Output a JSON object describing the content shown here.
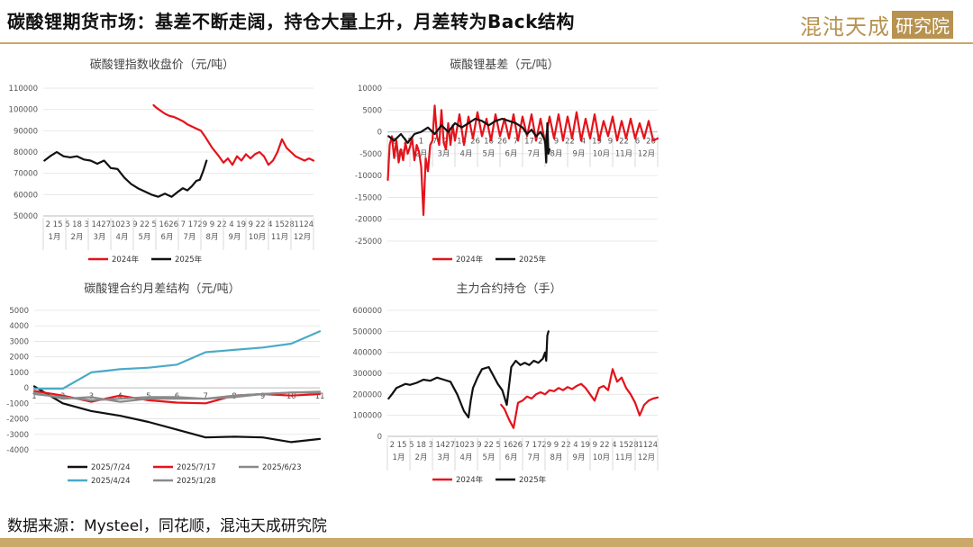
{
  "header": {
    "title": "碳酸锂期货市场：基差不断走阔，持仓大量上升，月差转为Back结构",
    "logo_text": "混沌天成",
    "logo_box": "研究院"
  },
  "footer": {
    "source": "数据来源：Mysteel，同花顺，混沌天成研究院"
  },
  "colors": {
    "red": "#e4131b",
    "black": "#111111",
    "gray": "#8a8a8a",
    "teal": "#4aaac8",
    "gold": "#c9a86a"
  },
  "chart_data": [
    {
      "id": "price",
      "type": "line",
      "title": "碳酸锂指数收盘价（元/吨）",
      "ylim": [
        50000,
        110000
      ],
      "yticks": [
        50000,
        60000,
        70000,
        80000,
        90000,
        100000,
        110000
      ],
      "x_day_labels": [
        "2",
        "15",
        "5",
        "18",
        "3",
        "14",
        "27",
        "10",
        "23",
        "9",
        "22",
        "5",
        "16",
        "26",
        "7",
        "17",
        "29",
        "9",
        "22",
        "4",
        "19",
        "9",
        "22",
        "4",
        "15",
        "28",
        "11",
        "24"
      ],
      "months": [
        "1月",
        "2月",
        "3月",
        "4月",
        "5月",
        "6月",
        "7月",
        "8月",
        "9月",
        "10月",
        "11月",
        "12月"
      ],
      "series": [
        {
          "name": "2024年",
          "color": "#e4131b",
          "x": [
            4.9,
            5.0,
            5.2,
            5.4,
            5.6,
            5.8,
            6.0,
            6.2,
            6.4,
            6.6,
            6.8,
            7.0,
            7.2,
            7.5,
            7.8,
            8.0,
            8.2,
            8.4,
            8.6,
            8.8,
            9.0,
            9.2,
            9.4,
            9.6,
            9.8,
            10.0,
            10.2,
            10.4,
            10.6,
            10.8,
            11.0,
            11.2,
            11.4,
            11.6,
            11.8,
            12.0
          ],
          "values": [
            102000,
            101000,
            99500,
            98000,
            97000,
            96500,
            95500,
            94500,
            93000,
            92000,
            91000,
            90000,
            87000,
            82000,
            78000,
            75000,
            77000,
            74000,
            78000,
            76000,
            79000,
            77000,
            79000,
            80000,
            78000,
            74000,
            76000,
            80000,
            86000,
            82000,
            80000,
            78000,
            77000,
            76000,
            77000,
            76000
          ]
        },
        {
          "name": "2025年",
          "color": "#111111",
          "x": [
            0.05,
            0.3,
            0.6,
            0.9,
            1.2,
            1.5,
            1.8,
            2.1,
            2.4,
            2.7,
            3.0,
            3.3,
            3.6,
            3.9,
            4.2,
            4.5,
            4.8,
            5.1,
            5.4,
            5.7,
            6.0,
            6.2,
            6.4,
            6.6,
            6.8,
            6.95,
            7.1,
            7.25
          ],
          "values": [
            76000,
            78000,
            80000,
            78000,
            77500,
            78000,
            76500,
            76000,
            74500,
            76000,
            72500,
            72000,
            68000,
            65000,
            63000,
            61500,
            60000,
            59000,
            60500,
            59000,
            61500,
            63000,
            62000,
            64000,
            66500,
            67000,
            71000,
            76000
          ]
        }
      ]
    },
    {
      "id": "basis",
      "type": "line",
      "title": "碳酸锂基差（元/吨）",
      "ylim": [
        -25000,
        10000
      ],
      "yticks": [
        -25000,
        -20000,
        -15000,
        -10000,
        -5000,
        0,
        5000,
        10000
      ],
      "x_day_labels": [
        "2",
        "15",
        "1",
        "7",
        "27",
        "14",
        "26",
        "16",
        "26",
        "7",
        "17",
        "29",
        "9",
        "22",
        "4",
        "19",
        "9",
        "22",
        "6",
        "20"
      ],
      "months": [
        "1月",
        "2月",
        "3月",
        "4月",
        "5月",
        "6月",
        "7月",
        "8月",
        "9月",
        "10月",
        "11月",
        "12月"
      ],
      "series": [
        {
          "name": "2024年",
          "color": "#e4131b",
          "x": [
            0.02,
            0.1,
            0.2,
            0.3,
            0.4,
            0.5,
            0.6,
            0.7,
            0.8,
            0.9,
            1.0,
            1.1,
            1.2,
            1.3,
            1.4,
            1.5,
            1.6,
            1.7,
            1.8,
            1.9,
            2.0,
            2.1,
            2.2,
            2.3,
            2.4,
            2.5,
            2.6,
            2.7,
            2.8,
            2.9,
            3.0,
            3.2,
            3.4,
            3.6,
            3.8,
            4.0,
            4.2,
            4.4,
            4.6,
            4.8,
            5.0,
            5.2,
            5.4,
            5.6,
            5.8,
            6.0,
            6.2,
            6.4,
            6.6,
            6.8,
            7.0,
            7.2,
            7.4,
            7.6,
            7.8,
            8.0,
            8.2,
            8.4,
            8.6,
            8.8,
            9.0,
            9.2,
            9.4,
            9.6,
            9.8,
            10.0,
            10.2,
            10.4,
            10.6,
            10.8,
            11.0,
            11.2,
            11.4,
            11.6,
            11.8,
            12.0
          ],
          "values": [
            -11000,
            -3000,
            -1000,
            -6000,
            -2000,
            -7000,
            -4000,
            -6500,
            -2500,
            -5000,
            -3500,
            -1500,
            -6500,
            -3000,
            -4500,
            -8000,
            -19000,
            -6000,
            -9000,
            -3000,
            -2000,
            6000,
            -1000,
            -3000,
            5000,
            -2500,
            -4000,
            2000,
            -3000,
            1500,
            -2000,
            4000,
            -3000,
            3500,
            -1500,
            4500,
            -1000,
            3000,
            -2000,
            4000,
            -1000,
            3000,
            -1500,
            4000,
            -2000,
            3500,
            -1000,
            4000,
            -2000,
            3000,
            -2500,
            3500,
            -1500,
            4000,
            -2000,
            3500,
            -1500,
            4500,
            -2000,
            3000,
            -1500,
            4000,
            -2000,
            2500,
            -1000,
            3500,
            -2000,
            2500,
            -1500,
            3000,
            -1500,
            2000,
            -1500,
            2500,
            -2000,
            -1500
          ]
        },
        {
          "name": "2025年",
          "color": "#111111",
          "x": [
            0.05,
            0.3,
            0.6,
            0.9,
            1.2,
            1.5,
            1.8,
            2.1,
            2.4,
            2.7,
            3.0,
            3.3,
            3.6,
            3.9,
            4.2,
            4.5,
            4.8,
            5.1,
            5.4,
            5.7,
            6.0,
            6.2,
            6.4,
            6.6,
            6.8,
            7.0,
            7.05,
            7.1,
            7.15,
            7.2
          ],
          "values": [
            -1000,
            -2000,
            -500,
            -2500,
            -500,
            0,
            1000,
            -500,
            1500,
            0,
            2000,
            1000,
            2000,
            3000,
            2500,
            1500,
            2500,
            3000,
            2500,
            2000,
            1000,
            -500,
            500,
            -1000,
            0,
            -2000,
            -7000,
            2000,
            -5000,
            -4000
          ]
        }
      ]
    },
    {
      "id": "spread",
      "type": "line",
      "title": "碳酸锂合约月差结构（元/吨）",
      "ylim": [
        -4000,
        5000
      ],
      "yticks": [
        -4000,
        -3000,
        -2000,
        -1000,
        0,
        1000,
        2000,
        3000,
        4000,
        5000
      ],
      "x_labels": [
        "1",
        "2",
        "3",
        "4",
        "5",
        "6",
        "7",
        "8",
        "9",
        "10",
        "11"
      ],
      "series": [
        {
          "name": "2025/7/24",
          "color": "#111111",
          "values": [
            100,
            -1000,
            -1500,
            -1800,
            -2200,
            -2700,
            -3200,
            -3150,
            -3200,
            -3500,
            -3300
          ]
        },
        {
          "name": "2025/7/17",
          "color": "#e4131b",
          "values": [
            -200,
            -500,
            -900,
            -500,
            -800,
            -950,
            -1000,
            -500,
            -400,
            -500,
            -400
          ]
        },
        {
          "name": "2025/6/23",
          "color": "#8a8a8a",
          "values": [
            -400,
            -600,
            -800,
            -700,
            -600,
            -600,
            -700,
            -600,
            -400,
            -300,
            -250
          ]
        },
        {
          "name": "2025/4/24",
          "color": "#4aaac8",
          "values": [
            -50,
            -50,
            1000,
            1200,
            1300,
            1500,
            2300,
            2450,
            2600,
            2850,
            3650
          ]
        },
        {
          "name": "2025/1/28",
          "color": "#8a8a8a",
          "values": [
            -300,
            -700,
            -600,
            -900,
            -700,
            -700,
            -700,
            -500,
            -400,
            -300,
            -300
          ]
        }
      ]
    },
    {
      "id": "oi",
      "type": "line",
      "title": "主力合约持仓（手）",
      "ylim": [
        0,
        600000
      ],
      "yticks": [
        0,
        100000,
        200000,
        300000,
        400000,
        500000,
        600000
      ],
      "x_day_labels": [
        "2",
        "15",
        "5",
        "18",
        "3",
        "14",
        "27",
        "10",
        "23",
        "9",
        "22",
        "5",
        "16",
        "26",
        "7",
        "17",
        "29",
        "9",
        "22",
        "4",
        "19",
        "9",
        "22",
        "4",
        "15",
        "28",
        "11",
        "24"
      ],
      "months": [
        "1月",
        "2月",
        "3月",
        "4月",
        "5月",
        "6月",
        "7月",
        "8月",
        "9月",
        "10月",
        "11月",
        "12月"
      ],
      "series": [
        {
          "name": "2024年",
          "color": "#e4131b",
          "x": [
            5.05,
            5.2,
            5.4,
            5.6,
            5.8,
            6.0,
            6.2,
            6.4,
            6.6,
            6.8,
            7.0,
            7.2,
            7.4,
            7.6,
            7.8,
            8.0,
            8.2,
            8.4,
            8.6,
            8.8,
            9.0,
            9.2,
            9.4,
            9.6,
            9.8,
            10.0,
            10.2,
            10.4,
            10.6,
            10.8,
            11.0,
            11.2,
            11.4,
            11.6,
            11.8,
            12.0
          ],
          "values": [
            150000,
            130000,
            80000,
            40000,
            160000,
            170000,
            190000,
            180000,
            200000,
            210000,
            200000,
            220000,
            215000,
            230000,
            220000,
            235000,
            225000,
            240000,
            250000,
            230000,
            200000,
            170000,
            230000,
            240000,
            220000,
            320000,
            260000,
            280000,
            230000,
            200000,
            160000,
            100000,
            150000,
            170000,
            180000,
            185000
          ]
        },
        {
          "name": "2025年",
          "color": "#111111",
          "x": [
            0.05,
            0.2,
            0.4,
            0.6,
            0.8,
            1.0,
            1.3,
            1.6,
            1.9,
            2.2,
            2.5,
            2.8,
            3.1,
            3.4,
            3.6,
            3.7,
            3.8,
            4.0,
            4.2,
            4.5,
            4.7,
            4.9,
            5.1,
            5.3,
            5.5,
            5.7,
            5.9,
            6.1,
            6.3,
            6.5,
            6.7,
            6.9,
            7.0,
            7.05,
            7.1,
            7.15
          ],
          "values": [
            180000,
            200000,
            230000,
            240000,
            250000,
            245000,
            255000,
            270000,
            265000,
            280000,
            270000,
            260000,
            200000,
            120000,
            90000,
            170000,
            230000,
            280000,
            320000,
            330000,
            290000,
            250000,
            220000,
            150000,
            330000,
            360000,
            340000,
            350000,
            340000,
            360000,
            350000,
            370000,
            400000,
            360000,
            480000,
            500000
          ]
        }
      ]
    }
  ]
}
